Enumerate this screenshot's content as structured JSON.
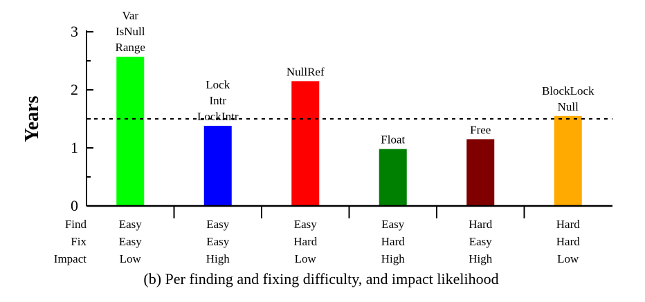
{
  "chart_data": {
    "type": "bar",
    "ylabel": "Years",
    "ylim": [
      0,
      3
    ],
    "yticks": [
      "0",
      "1",
      "2",
      "3"
    ],
    "reference_line": 1.5,
    "row_labels": [
      "Find",
      "Fix",
      "Impact"
    ],
    "categories": [
      {
        "find": "Easy",
        "fix": "Easy",
        "impact": "Low",
        "value": 2.57,
        "color": "#00ff00",
        "labels": [
          "Var",
          "IsNull",
          "Range"
        ]
      },
      {
        "find": "Easy",
        "fix": "Easy",
        "impact": "High",
        "value": 1.38,
        "color": "#0000ff",
        "labels": [
          "Lock",
          "Intr",
          "LockIntr"
        ]
      },
      {
        "find": "Easy",
        "fix": "Hard",
        "impact": "Low",
        "value": 2.15,
        "color": "#ff0000",
        "labels": [
          "NullRef"
        ]
      },
      {
        "find": "Easy",
        "fix": "Hard",
        "impact": "High",
        "value": 0.98,
        "color": "#008000",
        "labels": [
          "Float"
        ]
      },
      {
        "find": "Hard",
        "fix": "Easy",
        "impact": "High",
        "value": 1.15,
        "color": "#800000",
        "labels": [
          "Free"
        ]
      },
      {
        "find": "Hard",
        "fix": "Hard",
        "impact": "Low",
        "value": 1.55,
        "color": "#ffaa00",
        "labels": [
          "BlockLock",
          "Null"
        ]
      }
    ],
    "caption": "(b)  Per finding and fixing difficulty, and impact likelihood"
  }
}
